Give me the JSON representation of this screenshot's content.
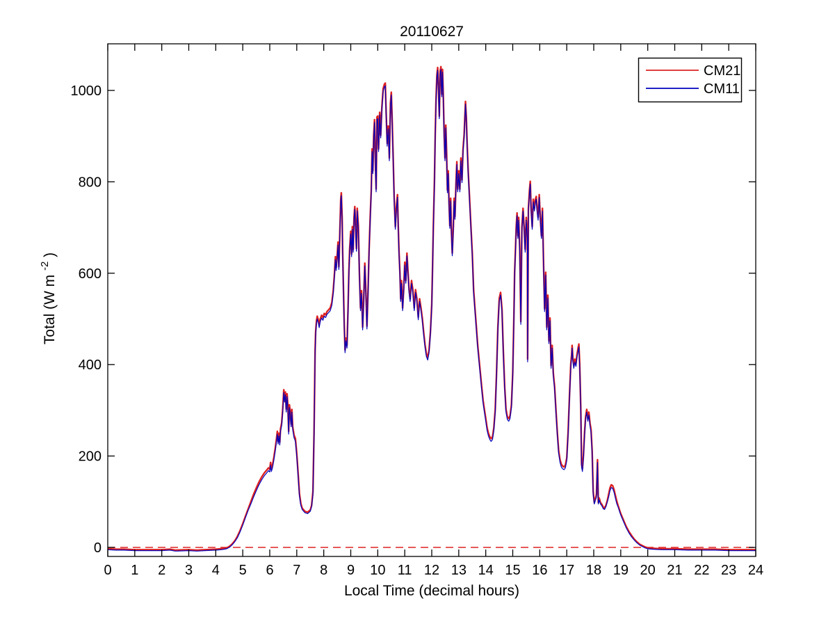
{
  "figure_title": "20110627",
  "axes": {
    "ylabel_parts": [
      "Total (W m",
      "-2",
      ")"
    ]
  },
  "chart_data": {
    "type": "line",
    "title": "20110627",
    "xlabel": "Local Time (decimal hours)",
    "ylabel": "Total (W m^-2)",
    "xlim": [
      0,
      24
    ],
    "ylim": [
      -20,
      1100
    ],
    "xticks": [
      0,
      1,
      2,
      3,
      4,
      5,
      6,
      7,
      8,
      9,
      10,
      11,
      12,
      13,
      14,
      15,
      16,
      17,
      18,
      19,
      20,
      21,
      22,
      23,
      24
    ],
    "yticks": [
      0,
      200,
      400,
      600,
      800,
      1000
    ],
    "grid": false,
    "legend_position": "top-right",
    "zero_line": {
      "y": 0,
      "style": "dashed",
      "color": "#dd2222"
    },
    "x": [
      0,
      0.3,
      0.6,
      1,
      1.5,
      2,
      2.3,
      2.5,
      3,
      3.3,
      3.6,
      4,
      4.2,
      4.4,
      4.5,
      4.6,
      4.7,
      4.8,
      4.9,
      5,
      5.1,
      5.2,
      5.3,
      5.4,
      5.5,
      5.6,
      5.7,
      5.8,
      5.9,
      5.95,
      6,
      6.03,
      6.06,
      6.1,
      6.15,
      6.2,
      6.25,
      6.28,
      6.31,
      6.34,
      6.37,
      6.4,
      6.44,
      6.48,
      6.52,
      6.55,
      6.58,
      6.61,
      6.64,
      6.67,
      6.7,
      6.73,
      6.76,
      6.79,
      6.82,
      6.85,
      6.9,
      6.95,
      7,
      7.05,
      7.1,
      7.15,
      7.2,
      7.3,
      7.4,
      7.5,
      7.55,
      7.6,
      7.64,
      7.66,
      7.68,
      7.7,
      7.73,
      7.76,
      7.8,
      7.83,
      7.87,
      7.92,
      7.97,
      8.02,
      8.07,
      8.12,
      8.18,
      8.24,
      8.3,
      8.35,
      8.4,
      8.43,
      8.46,
      8.5,
      8.53,
      8.56,
      8.6,
      8.63,
      8.65,
      8.68,
      8.7,
      8.73,
      8.76,
      8.79,
      8.82,
      8.86,
      8.9,
      8.93,
      8.96,
      9,
      9.03,
      9.06,
      9.09,
      9.12,
      9.15,
      9.18,
      9.21,
      9.24,
      9.28,
      9.32,
      9.36,
      9.4,
      9.44,
      9.48,
      9.52,
      9.56,
      9.6,
      9.64,
      9.68,
      9.72,
      9.76,
      9.79,
      9.82,
      9.85,
      9.88,
      9.91,
      9.94,
      9.97,
      10,
      10.03,
      10.07,
      10.11,
      10.15,
      10.2,
      10.25,
      10.28,
      10.31,
      10.35,
      10.39,
      10.43,
      10.47,
      10.5,
      10.53,
      10.57,
      10.61,
      10.65,
      10.69,
      10.73,
      10.76,
      10.79,
      10.82,
      10.85,
      10.88,
      10.92,
      10.96,
      11,
      11.04,
      11.08,
      11.12,
      11.16,
      11.2,
      11.25,
      11.3,
      11.35,
      11.4,
      11.45,
      11.5,
      11.55,
      11.6,
      11.65,
      11.7,
      11.75,
      11.8,
      11.85,
      11.9,
      11.95,
      12,
      12.03,
      12.06,
      12.1,
      12.13,
      12.16,
      12.19,
      12.22,
      12.25,
      12.28,
      12.31,
      12.34,
      12.37,
      12.4,
      12.43,
      12.46,
      12.49,
      12.52,
      12.55,
      12.58,
      12.61,
      12.64,
      12.67,
      12.7,
      12.73,
      12.76,
      12.8,
      12.83,
      12.86,
      12.9,
      12.93,
      12.96,
      13,
      13.04,
      13.08,
      13.12,
      13.16,
      13.2,
      13.25,
      13.28,
      13.31,
      13.35,
      13.4,
      13.45,
      13.5,
      13.55,
      13.6,
      13.65,
      13.7,
      13.75,
      13.8,
      13.85,
      13.9,
      13.95,
      14,
      14.05,
      14.1,
      14.15,
      14.2,
      14.25,
      14.3,
      14.35,
      14.4,
      14.45,
      14.5,
      14.55,
      14.6,
      14.65,
      14.7,
      14.75,
      14.8,
      14.85,
      14.9,
      14.95,
      15,
      15.04,
      15.07,
      15.1,
      15.13,
      15.16,
      15.19,
      15.22,
      15.26,
      15.3,
      15.34,
      15.38,
      15.42,
      15.46,
      15.5,
      15.54,
      15.55,
      15.58,
      15.62,
      15.65,
      15.68,
      15.72,
      15.76,
      15.8,
      15.84,
      15.87,
      15.9,
      15.94,
      15.98,
      16.02,
      16.06,
      16.1,
      16.14,
      16.18,
      16.22,
      16.26,
      16.3,
      16.34,
      16.38,
      16.42,
      16.46,
      16.5,
      16.55,
      16.6,
      16.65,
      16.7,
      16.75,
      16.8,
      16.85,
      16.9,
      16.95,
      17,
      17.05,
      17.1,
      17.15,
      17.18,
      17.2,
      17.23,
      17.26,
      17.3,
      17.34,
      17.38,
      17.42,
      17.45,
      17.48,
      17.52,
      17.55,
      17.58,
      17.62,
      17.66,
      17.7,
      17.74,
      17.78,
      17.82,
      17.86,
      17.9,
      17.94,
      17.98,
      18.02,
      18.06,
      18.1,
      18.14,
      18.17,
      18.2,
      18.25,
      18.3,
      18.35,
      18.4,
      18.45,
      18.5,
      18.55,
      18.6,
      18.65,
      18.7,
      18.75,
      18.8,
      18.85,
      18.9,
      19,
      19.1,
      19.2,
      19.3,
      19.4,
      19.5,
      19.6,
      19.7,
      19.8,
      19.9,
      20,
      20.2,
      20.5,
      21,
      21.5,
      22,
      22.5,
      23,
      23.5,
      24
    ],
    "series": [
      {
        "name": "CM21",
        "color": "#dd2222",
        "values": [
          -3,
          -4,
          -4,
          -5,
          -5,
          -5,
          -4,
          -6,
          -5,
          -6,
          -5,
          -4,
          -3,
          -1,
          2,
          7,
          14,
          24,
          37,
          52,
          68,
          84,
          100,
          116,
          130,
          143,
          154,
          163,
          170,
          174,
          171,
          186,
          172,
          180,
          196,
          216,
          238,
          254,
          232,
          250,
          230,
          260,
          272,
          302,
          345,
          324,
          340,
          302,
          336,
          312,
          254,
          312,
          296,
          270,
          302,
          264,
          246,
          238,
          206,
          162,
          118,
          96,
          86,
          79,
          77,
          82,
          92,
          122,
          250,
          345,
          430,
          472,
          496,
          506,
          497,
          487,
          500,
          508,
          503,
          512,
          509,
          516,
          520,
          524,
          536,
          562,
          602,
          636,
          612,
          642,
          668,
          614,
          702,
          762,
          776,
          722,
          652,
          566,
          484,
          432,
          458,
          442,
          522,
          604,
          652,
          692,
          642,
          702,
          652,
          722,
          746,
          702,
          654,
          742,
          704,
          602,
          524,
          562,
          482,
          542,
          622,
          562,
          484,
          564,
          652,
          724,
          782,
          872,
          824,
          902,
          936,
          852,
          784,
          942,
          944,
          872,
          952,
          902,
          962,
          1004,
          1014,
          1016,
          952,
          884,
          922,
          852,
          972,
          996,
          944,
          854,
          764,
          702,
          744,
          772,
          704,
          644,
          602,
          544,
          584,
          524,
          564,
          624,
          584,
          644,
          604,
          564,
          544,
          584,
          564,
          524,
          564,
          544,
          504,
          544,
          524,
          502,
          472,
          444,
          424,
          416,
          432,
          472,
          532,
          616,
          704,
          804,
          904,
          984,
          1034,
          1050,
          1002,
          944,
          1042,
          1052,
          992,
          1046,
          982,
          902,
          852,
          924,
          862,
          782,
          824,
          752,
          704,
          764,
          692,
          644,
          704,
          764,
          724,
          804,
          844,
          784,
          824,
          784,
          852,
          804,
          872,
          904,
          976,
          942,
          884,
          824,
          764,
          704,
          644,
          564,
          524,
          484,
          444,
          412,
          382,
          352,
          322,
          302,
          282,
          262,
          250,
          242,
          238,
          242,
          262,
          302,
          382,
          482,
          545,
          558,
          522,
          432,
          352,
          302,
          286,
          282,
          288,
          312,
          382,
          502,
          602,
          652,
          702,
          732,
          682,
          722,
          652,
          494,
          702,
          742,
          702,
          652,
          722,
          682,
          412,
          742,
          782,
          801,
          742,
          702,
          762,
          742,
          762,
          768,
          742,
          722,
          772,
          722,
          682,
          742,
          622,
          522,
          602,
          482,
          552,
          452,
          502,
          398,
          442,
          382,
          352,
          302,
          252,
          212,
          192,
          182,
          178,
          176,
          180,
          196,
          252,
          332,
          402,
          422,
          442,
          412,
          398,
          412,
          402,
          422,
          436,
          445,
          402,
          302,
          182,
          172,
          202,
          252,
          286,
          302,
          282,
          296,
          272,
          258,
          212,
          122,
          98,
          106,
          116,
          192,
          98,
          108,
          98,
          94,
          88,
          86,
          92,
          102,
          116,
          130,
          137,
          135,
          127,
          114,
          102,
          92,
          74,
          60,
          46,
          35,
          26,
          18,
          12,
          7,
          4,
          1,
          -1,
          -2,
          -3,
          -3,
          -4,
          -4,
          -4,
          -5,
          -5,
          -5
        ]
      },
      {
        "name": "CM11",
        "color": "#0000bb",
        "values": [
          -5,
          -6,
          -6,
          -7,
          -7,
          -7,
          -6,
          -8,
          -7,
          -8,
          -7,
          -6,
          -5,
          -3,
          0,
          5,
          12,
          21,
          34,
          49,
          65,
          81,
          95,
          110,
          124,
          137,
          148,
          157,
          164,
          168,
          165,
          180,
          166,
          174,
          190,
          210,
          232,
          248,
          226,
          244,
          224,
          254,
          266,
          296,
          339,
          318,
          334,
          296,
          330,
          306,
          248,
          306,
          290,
          264,
          296,
          258,
          240,
          232,
          200,
          156,
          112,
          92,
          83,
          76,
          74,
          79,
          89,
          116,
          244,
          339,
          424,
          466,
          490,
          500,
          491,
          481,
          494,
          502,
          497,
          506,
          503,
          510,
          514,
          518,
          530,
          556,
          596,
          630,
          606,
          636,
          662,
          608,
          696,
          756,
          770,
          716,
          646,
          560,
          478,
          426,
          452,
          436,
          516,
          598,
          646,
          686,
          636,
          696,
          646,
          716,
          740,
          696,
          648,
          736,
          698,
          596,
          518,
          556,
          476,
          536,
          616,
          556,
          478,
          558,
          646,
          718,
          776,
          866,
          818,
          896,
          930,
          846,
          778,
          936,
          938,
          866,
          946,
          896,
          956,
          998,
          1008,
          1010,
          946,
          878,
          916,
          846,
          966,
          990,
          938,
          848,
          758,
          696,
          738,
          766,
          698,
          638,
          596,
          538,
          578,
          518,
          558,
          618,
          578,
          638,
          598,
          558,
          538,
          578,
          558,
          518,
          558,
          538,
          498,
          538,
          518,
          496,
          466,
          438,
          418,
          410,
          426,
          466,
          526,
          610,
          698,
          798,
          898,
          978,
          1028,
          1044,
          996,
          938,
          1036,
          1046,
          986,
          1040,
          976,
          896,
          846,
          918,
          856,
          776,
          818,
          746,
          698,
          758,
          686,
          638,
          698,
          758,
          718,
          798,
          838,
          778,
          818,
          778,
          846,
          798,
          866,
          898,
          970,
          936,
          878,
          818,
          758,
          698,
          638,
          558,
          518,
          478,
          438,
          406,
          376,
          346,
          316,
          296,
          276,
          256,
          244,
          236,
          232,
          236,
          256,
          296,
          376,
          476,
          539,
          552,
          516,
          426,
          346,
          296,
          280,
          276,
          282,
          306,
          376,
          496,
          596,
          646,
          696,
          726,
          676,
          716,
          646,
          488,
          696,
          736,
          696,
          646,
          716,
          676,
          406,
          736,
          776,
          795,
          736,
          696,
          756,
          736,
          756,
          762,
          736,
          716,
          766,
          716,
          676,
          736,
          616,
          516,
          596,
          476,
          546,
          446,
          496,
          392,
          436,
          376,
          346,
          296,
          246,
          206,
          186,
          176,
          172,
          170,
          174,
          190,
          246,
          326,
          396,
          416,
          436,
          406,
          392,
          406,
          396,
          416,
          430,
          439,
          396,
          296,
          176,
          166,
          196,
          246,
          280,
          296,
          276,
          290,
          266,
          252,
          206,
          116,
          95,
          103,
          110,
          186,
          95,
          104,
          95,
          91,
          85,
          83,
          89,
          99,
          110,
          124,
          131,
          129,
          121,
          108,
          96,
          89,
          71,
          57,
          43,
          32,
          23,
          16,
          10,
          5,
          2,
          -1,
          -3,
          -4,
          -5,
          -5,
          -6,
          -6,
          -6,
          -7,
          -7,
          -7
        ]
      }
    ]
  }
}
